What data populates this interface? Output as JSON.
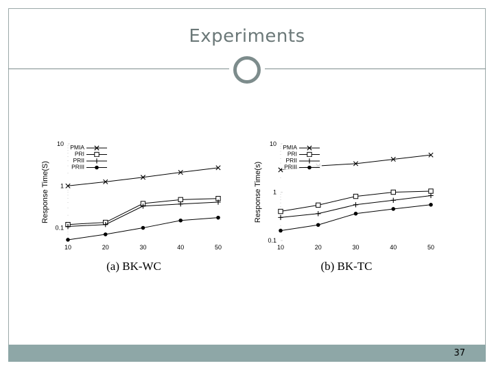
{
  "slide": {
    "title": "Experiments",
    "page_number": "37"
  },
  "chart_data": [
    {
      "type": "line",
      "caption": "(a)  BK-WC",
      "ylabel": "Response Time(S)",
      "yscale": "log",
      "ylim": [
        0.05,
        10
      ],
      "x": [
        10,
        20,
        30,
        40,
        50
      ],
      "xticks": [
        "10",
        "20",
        "30",
        "40",
        "50"
      ],
      "yticks": [
        {
          "value": 10,
          "label": "10"
        },
        {
          "value": 1,
          "label": "1"
        },
        {
          "value": 0.1,
          "label": "0.1"
        }
      ],
      "legend": "top-left",
      "series": [
        {
          "name": "PMIA",
          "marker": "x",
          "values": [
            1.0,
            1.25,
            1.6,
            2.1,
            2.7
          ]
        },
        {
          "name": "PRI",
          "marker": "square",
          "values": [
            0.12,
            0.135,
            0.38,
            0.47,
            0.5
          ]
        },
        {
          "name": "PRII",
          "marker": "plus",
          "values": [
            0.108,
            0.12,
            0.33,
            0.37,
            0.41
          ]
        },
        {
          "name": "PRIII",
          "marker": "dot",
          "values": [
            0.052,
            0.07,
            0.1,
            0.15,
            0.175
          ]
        }
      ]
    },
    {
      "type": "line",
      "caption": "(b)  BK-TC",
      "ylabel": "Response Time(s)",
      "yscale": "log",
      "ylim": [
        0.1,
        10
      ],
      "x": [
        10,
        20,
        30,
        40,
        50
      ],
      "xticks": [
        "10",
        "20",
        "30",
        "40",
        "50"
      ],
      "yticks": [
        {
          "value": 10,
          "label": "10"
        },
        {
          "value": 1,
          "label": "1"
        },
        {
          "value": 0.1,
          "label": "0.1"
        }
      ],
      "legend": "top-left",
      "series": [
        {
          "name": "PMIA",
          "marker": "x",
          "values": [
            2.9,
            3.5,
            3.9,
            4.8,
            5.9
          ]
        },
        {
          "name": "PRI",
          "marker": "square",
          "values": [
            0.4,
            0.54,
            0.82,
            1.0,
            1.05
          ]
        },
        {
          "name": "PRII",
          "marker": "plus",
          "values": [
            0.3,
            0.36,
            0.55,
            0.68,
            0.85
          ]
        },
        {
          "name": "PRIII",
          "marker": "dot",
          "values": [
            0.16,
            0.21,
            0.36,
            0.45,
            0.55
          ]
        }
      ]
    }
  ]
}
